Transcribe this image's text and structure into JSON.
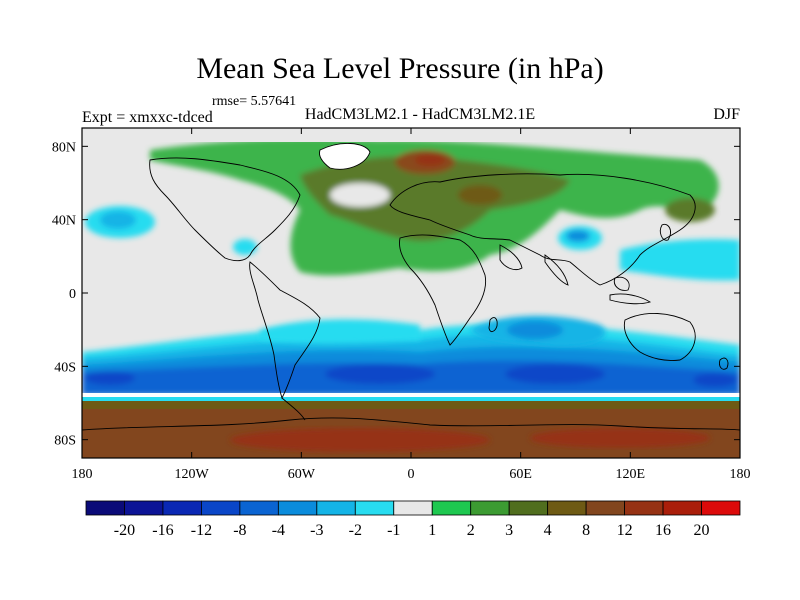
{
  "title": "Mean Sea Level Pressure (in hPa)",
  "rmse": "rmse= 5.57641",
  "expt": "Expt = xmxxc-tdced",
  "subtitle": "HadCM3LM2.1 - HadCM3LM2.1E",
  "season": "DJF",
  "lon_ticks": [
    "180",
    "120W",
    "60W",
    "0",
    "60E",
    "120E",
    "180"
  ],
  "lat_ticks": [
    "80N",
    "40N",
    "0",
    "40S",
    "80S"
  ],
  "colorbar": {
    "labels": [
      "-20",
      "-16",
      "-12",
      "-8",
      "-4",
      "-3",
      "-2",
      "-1",
      "1",
      "2",
      "3",
      "4",
      "8",
      "12",
      "16",
      "20"
    ],
    "colors": [
      "#0a0a78",
      "#0c1496",
      "#0a28b4",
      "#0a46c8",
      "#0a64d2",
      "#0a8cdc",
      "#14b4e6",
      "#28dcf0",
      "#e8e8e8",
      "#1ec850",
      "#3c9b32",
      "#506e1e",
      "#6e5a14",
      "#82461e",
      "#963214",
      "#aa1e0a",
      "#dc0a0a"
    ]
  },
  "colors": {
    "land_none": "#e8e8e8",
    "green": "#3cb44b",
    "olive": "#5a7a2a",
    "brown": "#8a4a1a",
    "blue_dark": "#0a46c8",
    "blue_mid": "#0a8cdc",
    "blue_light": "#28dcf0"
  }
}
